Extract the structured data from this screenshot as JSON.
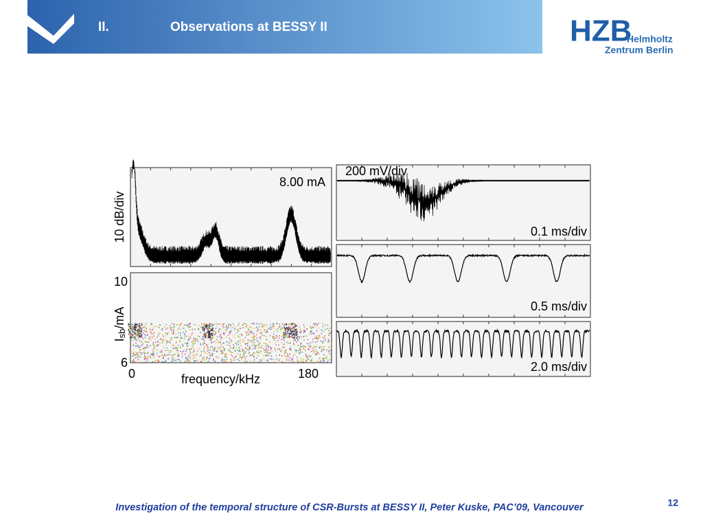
{
  "header": {
    "number": "II.",
    "title": "Observations at BESSY II"
  },
  "logo": {
    "mark": "HZB",
    "line1": "Helmholtz",
    "line2": "Zentrum Berlin"
  },
  "figure": {
    "spectrum": {
      "current": "8.00 mA",
      "ylabel": "10 dB/div"
    },
    "spectrogram": {
      "ytop": "10",
      "ybottom": "6",
      "ylabel": {
        "main": "I",
        "sub": "sb",
        "rest": "/mA"
      },
      "xleft": "0",
      "xright": "180",
      "xlabel": "frequency/kHz"
    },
    "traces": {
      "vscale": "200 mV/div",
      "t1": "0.1 ms/div",
      "t2": "0.5 ms/div",
      "t3": "2.0 ms/div"
    }
  },
  "footer": {
    "text": "Investigation of the temporal structure of CSR-Bursts at BESSY II, Peter Kuske, PAC’09, Vancouver",
    "page": "12"
  }
}
